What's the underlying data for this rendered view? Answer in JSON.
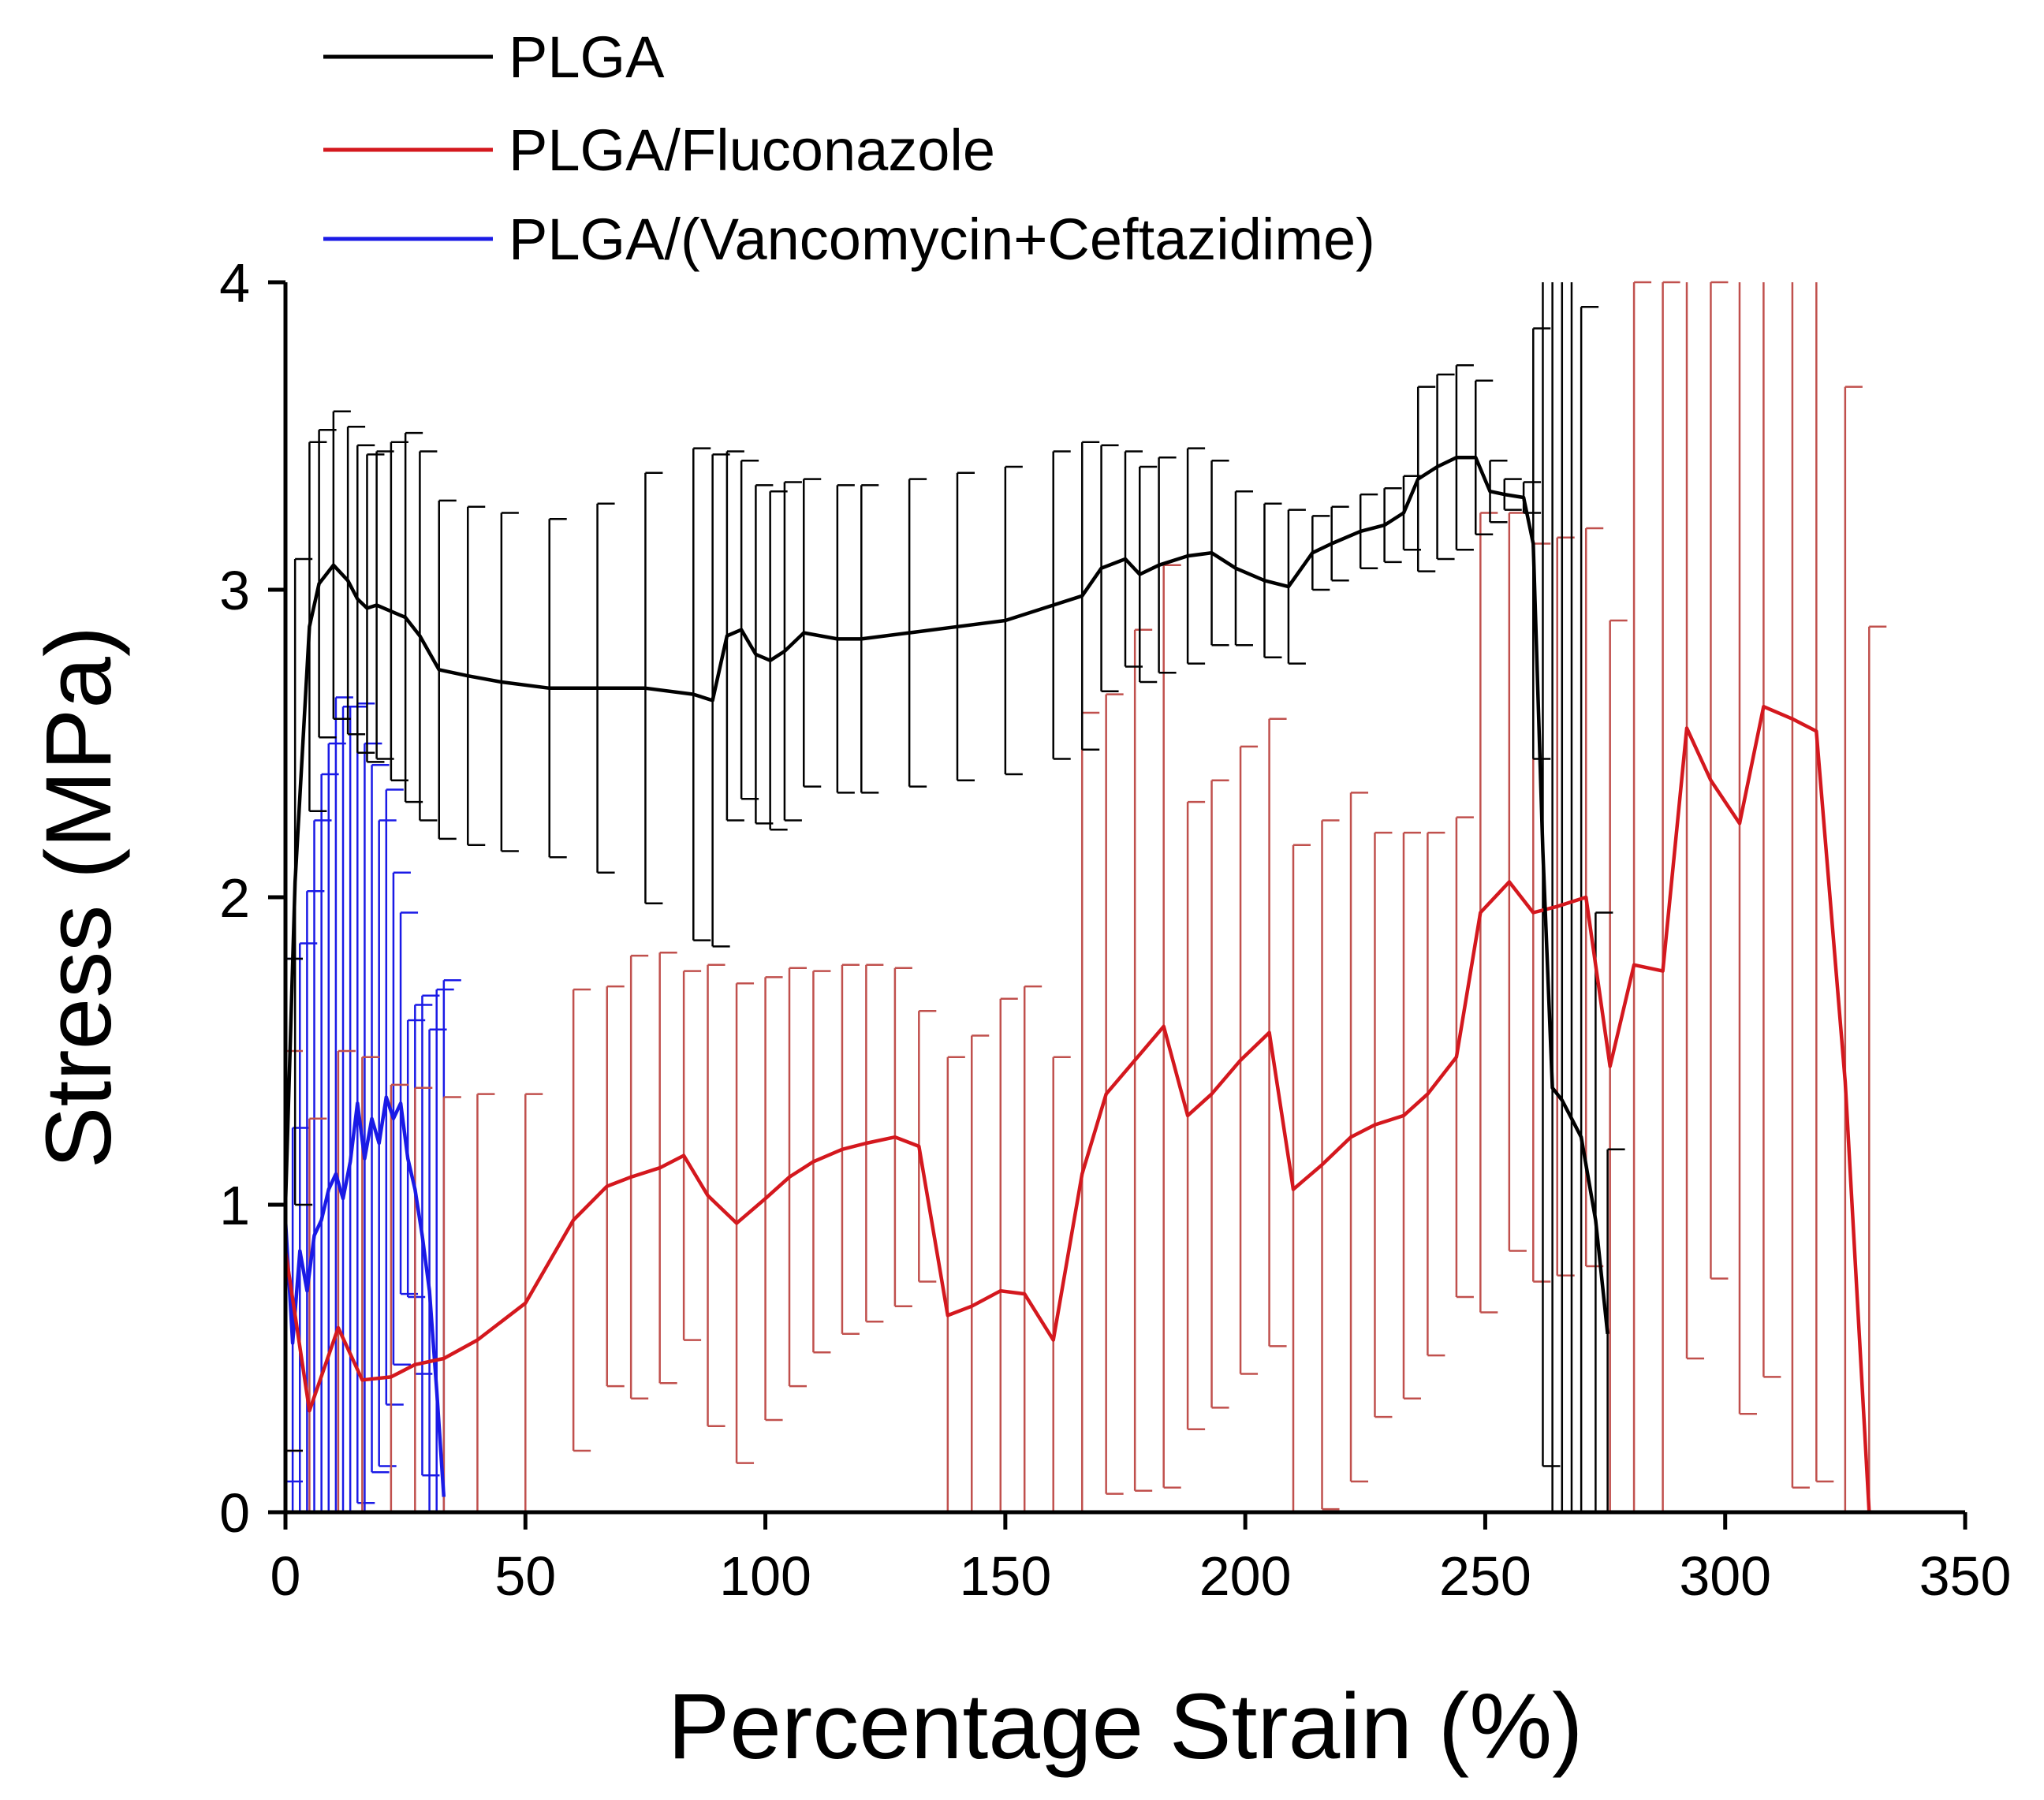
{
  "chart_data": {
    "type": "line",
    "title": "",
    "xlabel": "Percentage Strain (%)",
    "ylabel": "Stress (MPa)",
    "xlim": [
      0,
      350
    ],
    "ylim": [
      0,
      4
    ],
    "xticks": [
      0,
      50,
      100,
      150,
      200,
      250,
      300,
      350
    ],
    "yticks": [
      0,
      1,
      2,
      3,
      4
    ],
    "grid": false,
    "legend": "top-left, above plot",
    "error_bars": true,
    "series": [
      {
        "name": "PLGA",
        "color": "#000000",
        "error_color": "#000000",
        "x": [
          0,
          2,
          5,
          7,
          10,
          13,
          15,
          17,
          19,
          22,
          25,
          28,
          32,
          38,
          45,
          55,
          65,
          75,
          85,
          89,
          92,
          95,
          98,
          101,
          104,
          108,
          115,
          120,
          130,
          140,
          150,
          160,
          166,
          170,
          175,
          178,
          182,
          188,
          193,
          198,
          204,
          209,
          214,
          218,
          224,
          229,
          233,
          236,
          240,
          244,
          248,
          251,
          254,
          258,
          260,
          262,
          264,
          266,
          268,
          270,
          273,
          275.5
        ],
        "y": [
          1.0,
          2.05,
          2.88,
          3.02,
          3.08,
          3.03,
          2.97,
          2.94,
          2.95,
          2.93,
          2.91,
          2.85,
          2.74,
          2.72,
          2.7,
          2.68,
          2.68,
          2.68,
          2.66,
          2.64,
          2.85,
          2.87,
          2.79,
          2.77,
          2.8,
          2.86,
          2.84,
          2.84,
          2.86,
          2.88,
          2.9,
          2.95,
          2.98,
          3.07,
          3.1,
          3.05,
          3.08,
          3.11,
          3.12,
          3.07,
          3.03,
          3.01,
          3.12,
          3.15,
          3.19,
          3.21,
          3.25,
          3.36,
          3.4,
          3.43,
          3.43,
          3.32,
          3.31,
          3.3,
          3.15,
          2.15,
          1.38,
          1.34,
          1.28,
          1.22,
          0.95,
          0.58
        ],
        "err": [
          0.8,
          1.05,
          0.6,
          0.5,
          0.5,
          0.5,
          0.5,
          0.5,
          0.5,
          0.55,
          0.6,
          0.6,
          0.55,
          0.55,
          0.55,
          0.55,
          0.6,
          0.7,
          0.8,
          0.8,
          0.6,
          0.55,
          0.55,
          0.55,
          0.55,
          0.5,
          0.5,
          0.5,
          0.5,
          0.5,
          0.5,
          0.5,
          0.5,
          0.4,
          0.35,
          0.35,
          0.35,
          0.35,
          0.3,
          0.25,
          0.25,
          0.25,
          0.12,
          0.12,
          0.12,
          0.12,
          0.12,
          0.3,
          0.3,
          0.3,
          0.25,
          0.1,
          0.05,
          0.05,
          0.7,
          2.0,
          2.8,
          2.8,
          2.8,
          2.7,
          1.0,
          0.6
        ]
      },
      {
        "name": "PLGA/Fluconazole",
        "color": "#d4181e",
        "error_color": "#c0504d",
        "x": [
          0,
          5,
          11,
          16,
          22,
          27,
          33,
          40,
          50,
          60,
          67,
          72,
          78,
          83,
          88,
          94,
          100,
          105,
          110,
          116,
          121,
          127,
          132,
          138,
          143,
          149,
          154,
          160,
          166,
          171,
          177,
          183,
          188,
          193,
          199,
          205,
          210,
          216,
          222,
          227,
          233,
          238,
          244,
          249,
          255,
          260,
          265,
          271,
          276,
          281,
          287,
          292,
          297,
          303,
          308,
          314,
          319,
          325,
          330
        ],
        "y": [
          0.85,
          0.33,
          0.6,
          0.43,
          0.44,
          0.48,
          0.5,
          0.56,
          0.68,
          0.95,
          1.06,
          1.09,
          1.12,
          1.16,
          1.03,
          0.94,
          1.02,
          1.09,
          1.14,
          1.18,
          1.2,
          1.22,
          1.19,
          0.64,
          0.67,
          0.72,
          0.71,
          0.56,
          1.1,
          1.36,
          1.47,
          1.58,
          1.29,
          1.36,
          1.47,
          1.56,
          1.05,
          1.13,
          1.22,
          1.26,
          1.29,
          1.36,
          1.48,
          1.95,
          2.05,
          1.95,
          1.97,
          2.0,
          1.45,
          1.78,
          1.76,
          2.55,
          2.38,
          2.24,
          2.62,
          2.58,
          2.54,
          1.4,
          0.0
        ],
        "err": [
          0.65,
          0.95,
          0.9,
          1.05,
          0.95,
          0.9,
          0.85,
          0.8,
          0.68,
          0.75,
          0.65,
          0.72,
          0.7,
          0.6,
          0.75,
          0.78,
          0.72,
          0.68,
          0.62,
          0.6,
          0.58,
          0.55,
          0.44,
          0.84,
          0.88,
          0.95,
          1.0,
          0.92,
          1.5,
          1.3,
          1.4,
          1.5,
          1.02,
          1.02,
          1.02,
          1.02,
          1.12,
          1.12,
          1.12,
          0.95,
          0.92,
          0.85,
          0.78,
          1.3,
          1.2,
          1.2,
          1.2,
          1.2,
          1.45,
          2.22,
          2.24,
          2.05,
          1.62,
          1.92,
          2.18,
          2.5,
          2.44,
          2.26,
          2.88
        ]
      },
      {
        "name": "PLGA/(Vancomycin+Ceftazidime)",
        "color": "#1a1ae6",
        "error_color": "#1a1ae6",
        "x": [
          0,
          1.5,
          3,
          4.5,
          6,
          7.5,
          9,
          10.5,
          12,
          13.5,
          15,
          16.5,
          18,
          19.5,
          21,
          22.5,
          24,
          25.5,
          27,
          28.5,
          30,
          31.5,
          33
        ],
        "y": [
          0.95,
          0.55,
          0.85,
          0.72,
          0.9,
          0.95,
          1.05,
          1.1,
          1.02,
          1.14,
          1.33,
          1.15,
          1.28,
          1.2,
          1.35,
          1.28,
          1.33,
          1.15,
          1.05,
          0.9,
          0.72,
          0.4,
          0.05
        ],
        "err": [
          0.85,
          0.7,
          1.0,
          1.3,
          1.35,
          1.45,
          1.45,
          1.55,
          1.6,
          1.48,
          1.3,
          1.35,
          1.15,
          1.05,
          1.0,
          0.8,
          0.62,
          0.45,
          0.6,
          0.78,
          0.85,
          1.3,
          1.68
        ]
      }
    ]
  }
}
